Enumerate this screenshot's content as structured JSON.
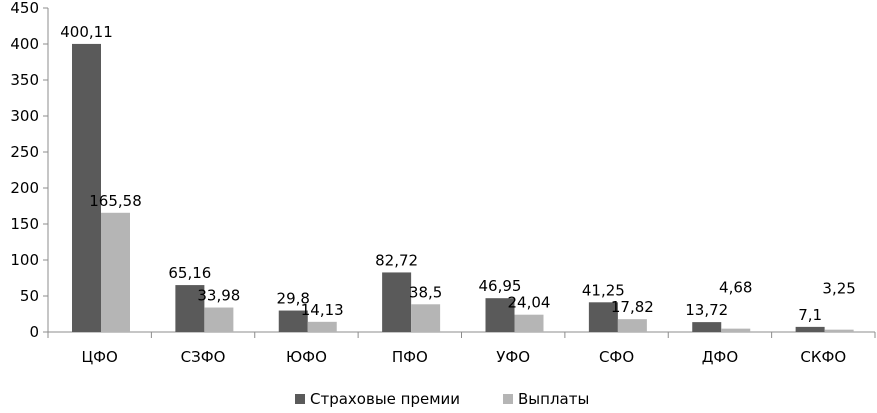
{
  "chart_data": {
    "type": "bar",
    "categories": [
      "ЦФО",
      "СЗФО",
      "ЮФО",
      "ПФО",
      "УФО",
      "СФО",
      "ДФО",
      "СКФО"
    ],
    "series": [
      {
        "name": "Страховые премии",
        "color": "#5a5a5a",
        "values": [
          400.11,
          65.16,
          29.8,
          82.72,
          46.95,
          41.25,
          13.72,
          7.1
        ],
        "labels": [
          "400,11",
          "65,16",
          "29,8",
          "82,72",
          "46,95",
          "41,25",
          "13,72",
          "7,1"
        ]
      },
      {
        "name": "Выплаты",
        "color": "#b5b5b5",
        "values": [
          165.58,
          33.98,
          14.13,
          38.5,
          24.04,
          17.82,
          4.68,
          3.25
        ],
        "labels": [
          "165,58",
          "33,98",
          "14,13",
          "38,5",
          "24,04",
          "17,82",
          "4,68",
          "3,25"
        ]
      }
    ],
    "ylim": [
      0,
      450
    ],
    "yticks": [
      0,
      50,
      100,
      150,
      200,
      250,
      300,
      350,
      400,
      450
    ],
    "grid": false,
    "legend_position": "bottom"
  }
}
